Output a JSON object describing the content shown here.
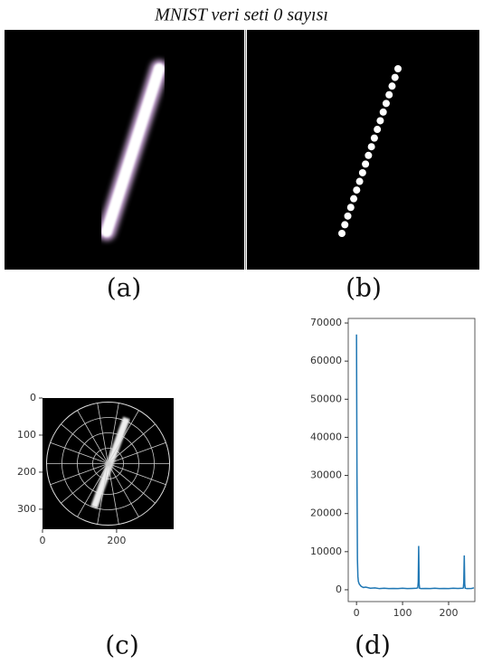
{
  "title": "MNIST veri seti 0 sayısı",
  "panel_labels": {
    "a": "(a)",
    "b": "(b)",
    "c": "(c)",
    "d": "(d)"
  },
  "chart_data": [
    {
      "type": "image",
      "xlim": [
        0,
        354
      ],
      "ylim": [
        0,
        354
      ],
      "y_inverted": true,
      "xticks": [
        0,
        200
      ],
      "yticks": [
        0,
        100,
        200,
        300
      ]
    },
    {
      "type": "line",
      "color": "#1f77b4",
      "x": [
        0,
        1,
        2,
        3,
        4,
        6,
        8,
        10,
        15,
        20,
        30,
        40,
        50,
        60,
        70,
        80,
        90,
        100,
        110,
        120,
        130,
        133,
        134,
        135,
        136,
        137,
        140,
        150,
        160,
        170,
        180,
        190,
        200,
        210,
        220,
        230,
        232,
        233,
        234,
        235,
        236,
        240,
        250,
        255
      ],
      "values": [
        67000,
        30000,
        8000,
        3500,
        2200,
        1500,
        1200,
        900,
        600,
        700,
        400,
        500,
        300,
        400,
        300,
        350,
        300,
        400,
        300,
        350,
        400,
        500,
        2000,
        11500,
        1500,
        400,
        300,
        350,
        300,
        400,
        300,
        350,
        300,
        400,
        350,
        400,
        500,
        2000,
        9000,
        1500,
        400,
        300,
        350,
        500
      ],
      "xlim": [
        -18,
        257
      ],
      "ylim": [
        -3100,
        71200
      ],
      "xticks": [
        0,
        100,
        200
      ],
      "yticks": [
        0,
        10000,
        20000,
        30000,
        40000,
        50000,
        60000,
        70000
      ]
    }
  ]
}
